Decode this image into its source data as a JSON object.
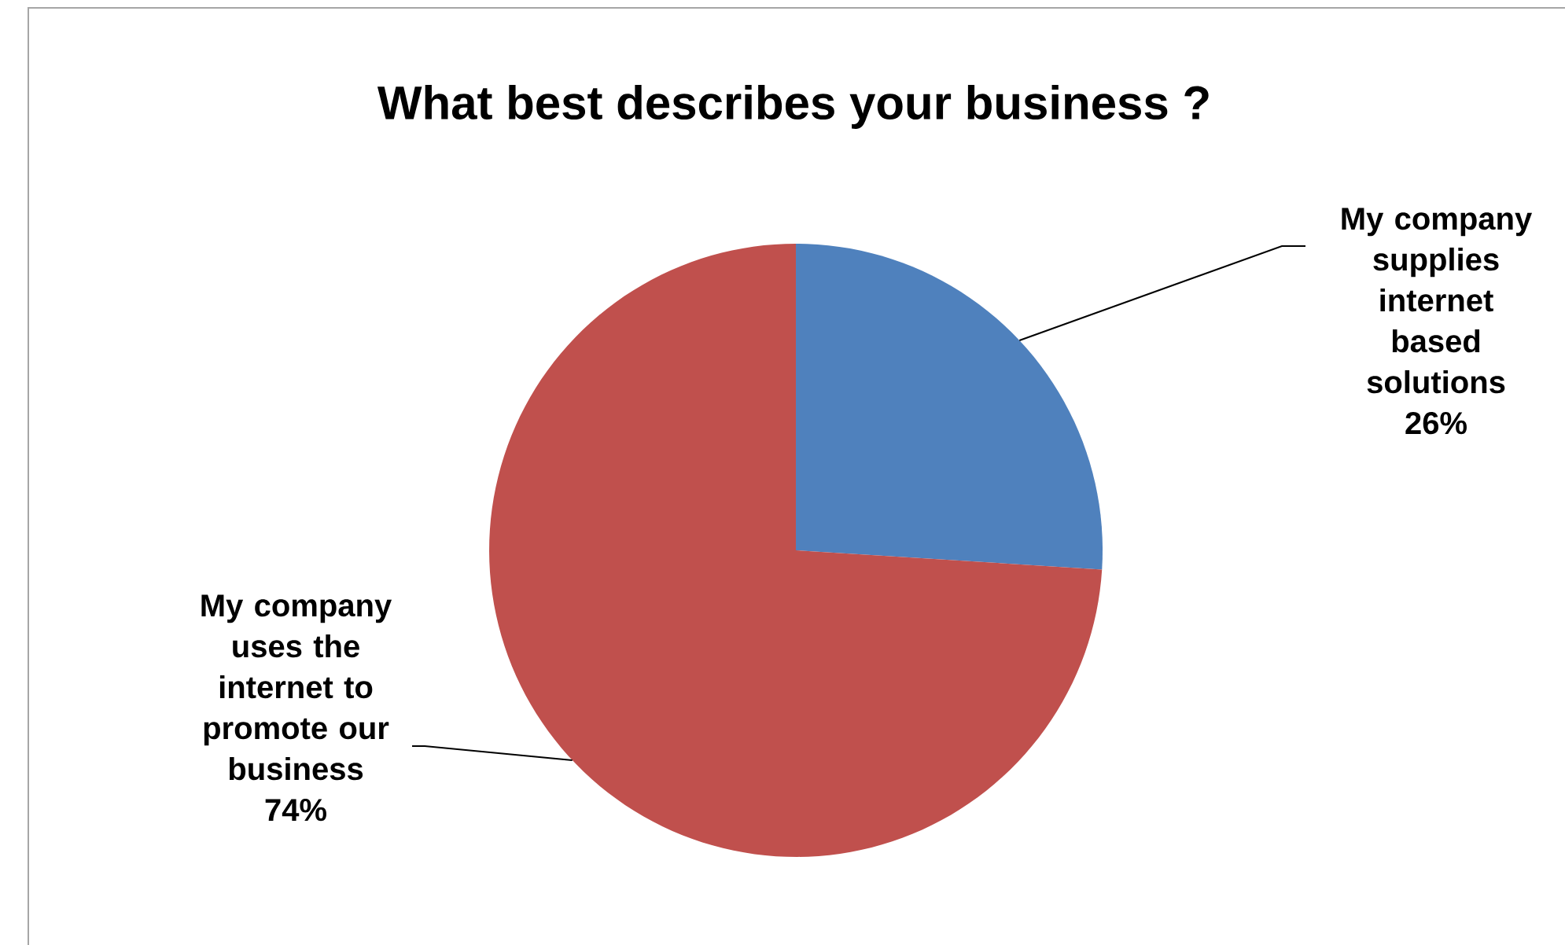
{
  "chart_data": {
    "type": "pie",
    "title": "What best describes your business ?",
    "categories": [
      "My company supplies internet based solutions",
      "My company uses the internet to promote our business"
    ],
    "values": [
      26,
      74
    ],
    "value_labels": [
      "26%",
      "74%"
    ],
    "colors": [
      "#4f81bd",
      "#c0504d"
    ]
  }
}
